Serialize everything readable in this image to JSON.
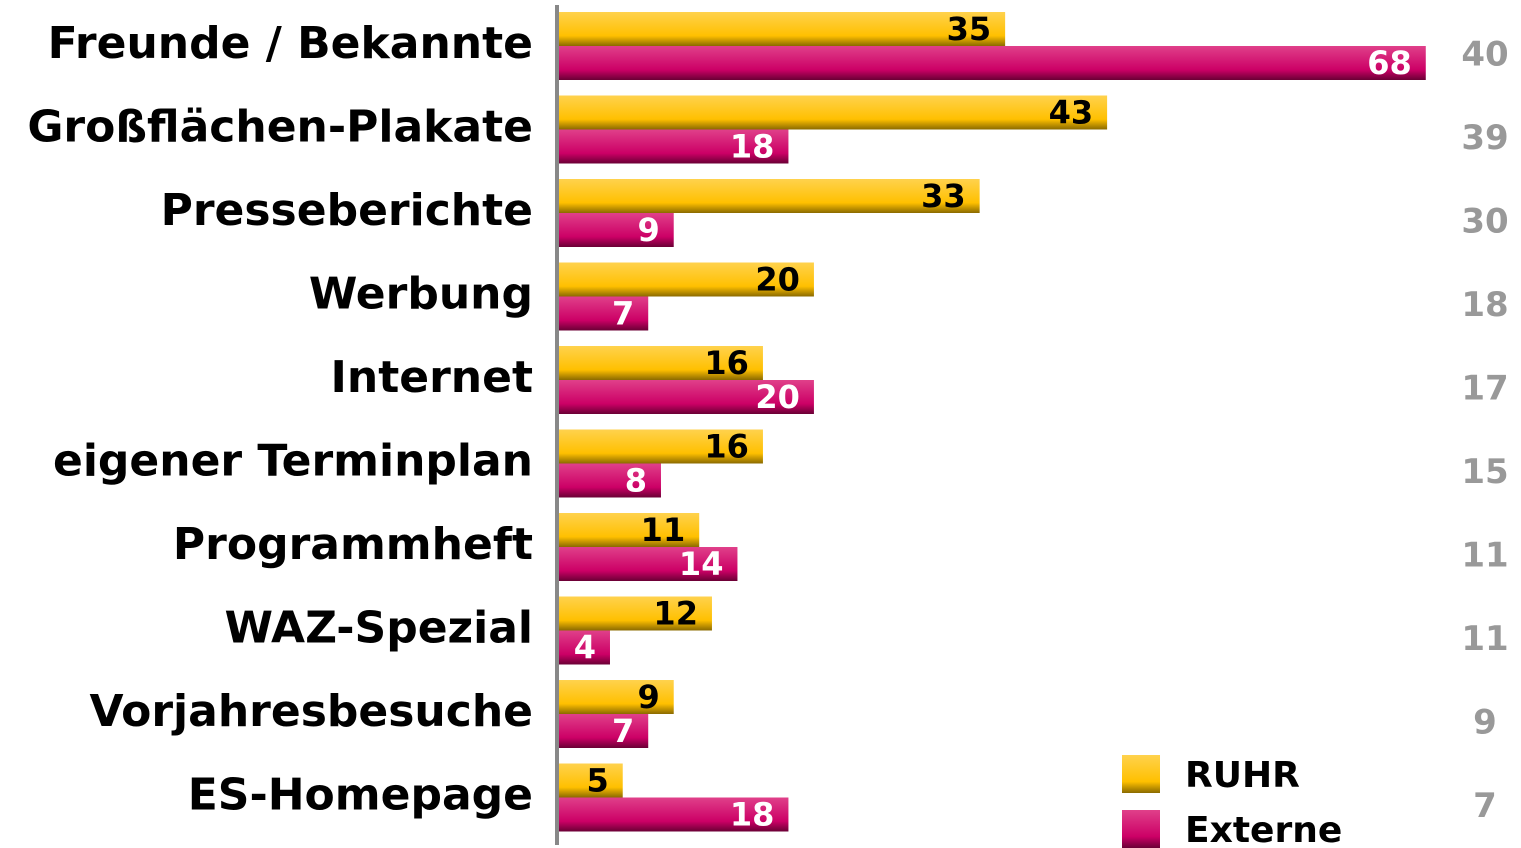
{
  "chart_data": {
    "type": "bar",
    "orientation": "horizontal",
    "categories": [
      "Freunde / Bekannte",
      "Großflächen-Plakate",
      "Presseberichte",
      "Werbung",
      "Internet",
      "eigener Terminplan",
      "Programmheft",
      "WAZ-Spezial",
      "Vorjahresbesuche",
      "ES-Homepage"
    ],
    "series": [
      {
        "name": "RUHR",
        "color": "#ffc000",
        "values": [
          35,
          43,
          33,
          20,
          16,
          16,
          11,
          12,
          9,
          5
        ]
      },
      {
        "name": "Externe",
        "color": "#cc0066",
        "values": [
          68,
          18,
          9,
          7,
          20,
          8,
          14,
          4,
          7,
          18
        ]
      }
    ],
    "totals": [
      40,
      39,
      30,
      18,
      17,
      15,
      11,
      11,
      9,
      7
    ],
    "xlim": [
      0,
      75
    ],
    "legend": "lower right"
  }
}
